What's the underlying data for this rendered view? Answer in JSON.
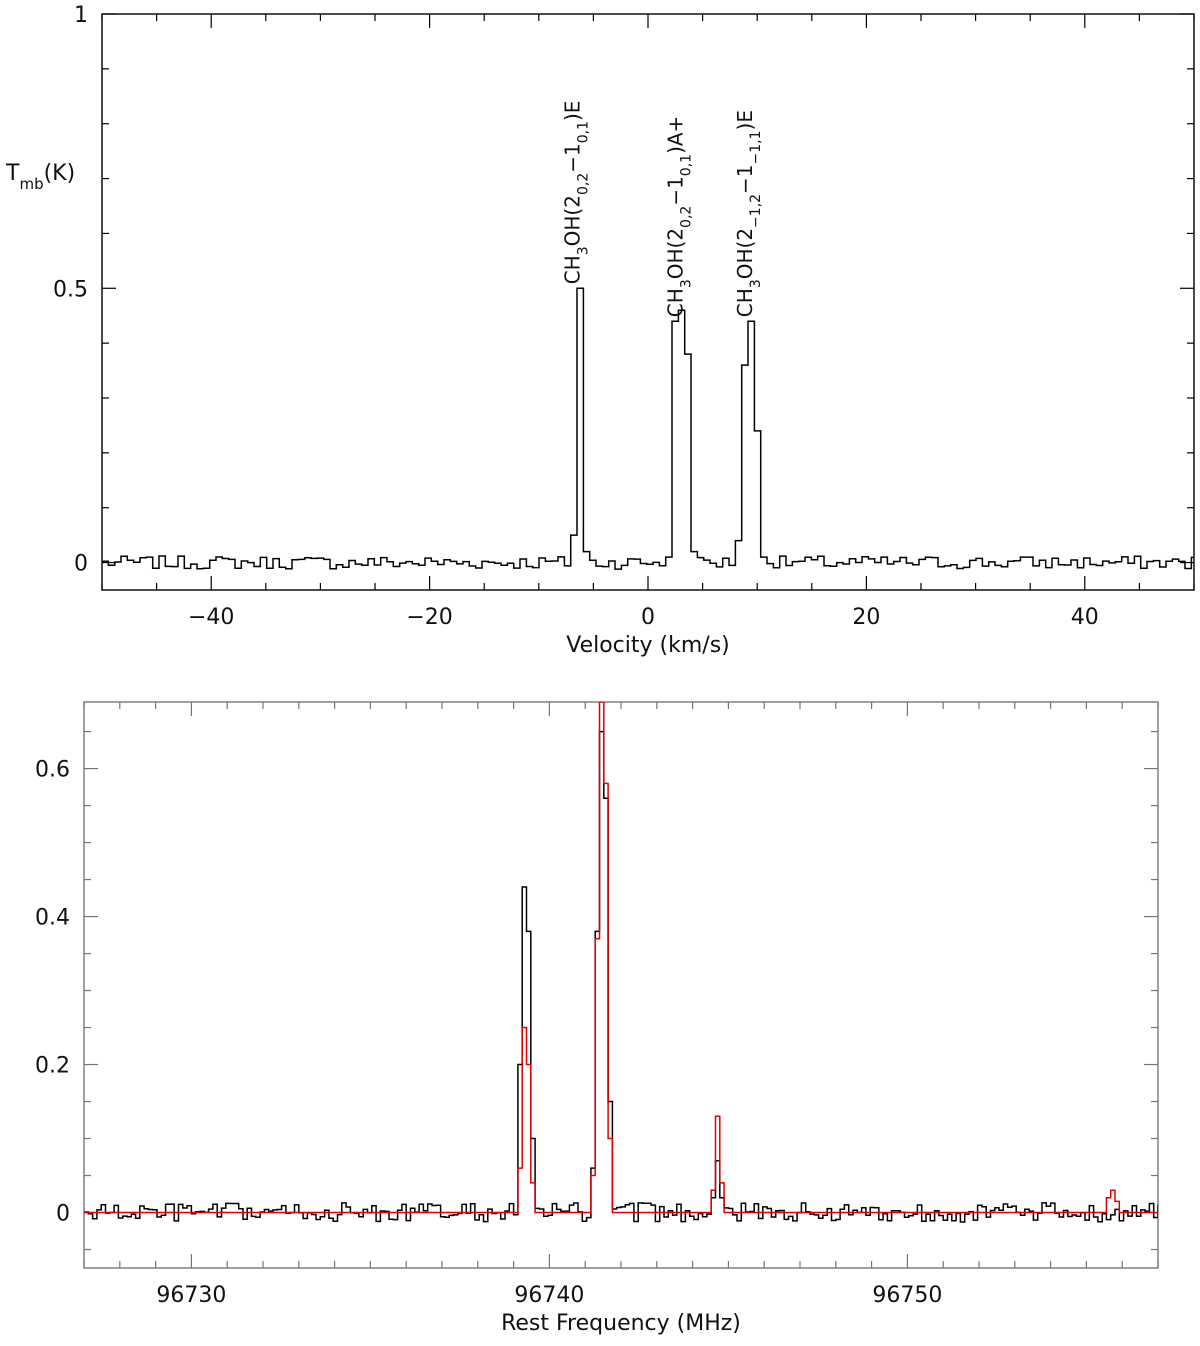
{
  "chart_data": [
    {
      "type": "line",
      "step": true,
      "xlabel": "Velocity (km/s)",
      "ylabel": "T_mb(K)",
      "xlim": [
        -50,
        50
      ],
      "ylim": [
        -0.05,
        1.0
      ],
      "x_ticks": [
        -40,
        -20,
        0,
        20,
        40
      ],
      "x_tick_labels": [
        "−40",
        "−20",
        "0",
        "20",
        "40"
      ],
      "y_ticks": [
        0,
        0.5,
        1
      ],
      "y_tick_labels": [
        "0",
        "0.5",
        "1"
      ],
      "grid": false,
      "color": "#000000",
      "baseline_noise": 0.012,
      "x_step": 0.58,
      "peaks": [
        {
          "x": -6.7,
          "values": [
            0.05,
            0.5,
            0.02
          ]
        },
        {
          "x": 2.9,
          "values": [
            0.01,
            0.44,
            0.46,
            0.38,
            0.02
          ]
        },
        {
          "x": 9.3,
          "values": [
            0.04,
            0.36,
            0.44,
            0.24,
            0.01
          ]
        }
      ],
      "annotations": [
        {
          "x": -6.9,
          "y": 0.5,
          "parts": [
            [
              "CH",
              0
            ],
            [
              "3",
              -1
            ],
            [
              "OH(2",
              0
            ],
            [
              "0,2",
              -1
            ],
            [
              "−1",
              0
            ],
            [
              "0,1",
              -1
            ],
            [
              ")E",
              0
            ]
          ]
        },
        {
          "x": 2.5,
          "y": 0.44,
          "parts": [
            [
              "CH",
              0
            ],
            [
              "3",
              -1
            ],
            [
              "OH(2",
              0
            ],
            [
              "0,2",
              -1
            ],
            [
              "−1",
              0
            ],
            [
              "0,1",
              -1
            ],
            [
              ")A+",
              0
            ]
          ]
        },
        {
          "x": 8.9,
          "y": 0.44,
          "parts": [
            [
              "CH",
              0
            ],
            [
              "3",
              -1
            ],
            [
              "OH(2",
              0
            ],
            [
              "−1,2",
              -1
            ],
            [
              "−1",
              0
            ],
            [
              "−1,1",
              -1
            ],
            [
              ")E",
              0
            ]
          ]
        }
      ]
    },
    {
      "type": "line",
      "step": true,
      "xlabel": "Rest Frequency (MHz)",
      "ylabel": "",
      "xlim": [
        96727.0,
        96757.0
      ],
      "ylim": [
        -0.075,
        0.69
      ],
      "x_ticks": [
        96730,
        96740,
        96750
      ],
      "x_tick_labels": [
        "96730",
        "96740",
        "96750"
      ],
      "y_ticks": [
        0,
        0.2,
        0.4,
        0.6
      ],
      "y_tick_labels": [
        "0",
        "0.2",
        "0.4",
        "0.6"
      ],
      "grid": false,
      "x_step": 0.12,
      "series": [
        {
          "color": "#000000",
          "baseline_noise": 0.013,
          "peaks": [
            {
              "x": 96739.4,
              "values": [
                0.2,
                0.44,
                0.38,
                0.1
              ]
            },
            {
              "x": 96741.4,
              "values": [
                0.06,
                0.38,
                0.65,
                0.56,
                0.15
              ]
            },
            {
              "x": 96744.6,
              "values": [
                0.02,
                0.07,
                0.02
              ]
            }
          ]
        },
        {
          "color": "#e00000",
          "baseline_noise": 0.0,
          "peaks": [
            {
              "x": 96739.4,
              "values": [
                0.06,
                0.25,
                0.2,
                0.04
              ]
            },
            {
              "x": 96741.4,
              "values": [
                0.05,
                0.37,
                0.69,
                0.58,
                0.1
              ]
            },
            {
              "x": 96744.6,
              "values": [
                0.03,
                0.13,
                0.04
              ]
            },
            {
              "x": 96755.7,
              "values": [
                0.02,
                0.03,
                0.015
              ]
            }
          ]
        }
      ]
    }
  ]
}
